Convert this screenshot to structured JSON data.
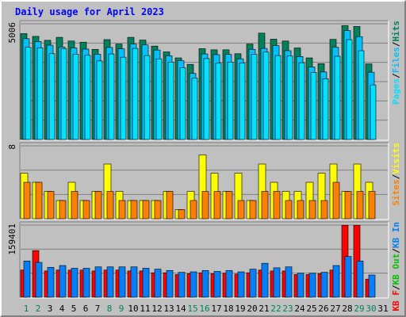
{
  "title": "Daily usage for April 2023",
  "colors": {
    "hits": "#00805c",
    "files": "#00c0ff",
    "pages": "#00e0ff",
    "visits": "#ffff00",
    "sites": "#ff8000",
    "kb_in": "#0080ff",
    "kb_out": "#00c000",
    "kb_f": "#ff0000",
    "panel_bg": "#c0c0c0",
    "grid": "#808080",
    "text_blue": "#0000ff"
  },
  "chart_data": [
    {
      "type": "bar",
      "panel": "requests",
      "ymax_label": "5006",
      "ylim": [
        0,
        5006
      ],
      "legend": [
        "Pages",
        "Files",
        "Hits"
      ],
      "categories": [
        "1",
        "2",
        "3",
        "4",
        "5",
        "6",
        "7",
        "8",
        "9",
        "10",
        "11",
        "12",
        "13",
        "14",
        "15",
        "16",
        "17",
        "18",
        "19",
        "20",
        "21",
        "22",
        "23",
        "24",
        "25",
        "26",
        "27",
        "28",
        "29",
        "30",
        "31"
      ],
      "series": [
        {
          "name": "Hits",
          "values": [
            4580,
            4460,
            4290,
            4420,
            4260,
            4210,
            3900,
            4320,
            4130,
            4420,
            4300,
            4040,
            3790,
            3530,
            3250,
            3930,
            3880,
            3880,
            3710,
            4130,
            4600,
            4340,
            4260,
            3960,
            3530,
            3280,
            4330,
            4930,
            4890,
            3270,
            null
          ]
        },
        {
          "name": "Files",
          "values": [
            4360,
            4240,
            4080,
            4000,
            3960,
            3910,
            3690,
            3980,
            3920,
            4130,
            4090,
            3870,
            3620,
            3410,
            2860,
            3700,
            3670,
            3680,
            3490,
            3900,
            3940,
            4060,
            3840,
            3590,
            3140,
            2920,
            3990,
            4710,
            4450,
            2910,
            null
          ]
        },
        {
          "name": "Pages",
          "values": [
            3990,
            3960,
            3710,
            3930,
            3690,
            3640,
            3400,
            3700,
            3560,
            3940,
            3630,
            3490,
            3350,
            3100,
            2660,
            3500,
            3300,
            3350,
            3310,
            3680,
            3780,
            3630,
            3610,
            3320,
            2900,
            2630,
            3600,
            4320,
            3840,
            2360,
            null
          ]
        }
      ]
    },
    {
      "type": "bar",
      "panel": "visits",
      "ymax_label": "8",
      "ylim": [
        0,
        8
      ],
      "legend": [
        "Sites",
        "Visits"
      ],
      "categories": [
        "1",
        "2",
        "3",
        "4",
        "5",
        "6",
        "7",
        "8",
        "9",
        "10",
        "11",
        "12",
        "13",
        "14",
        "15",
        "16",
        "17",
        "18",
        "19",
        "20",
        "21",
        "22",
        "23",
        "24",
        "25",
        "26",
        "27",
        "28",
        "29",
        "30",
        "31"
      ],
      "series": [
        {
          "name": "Visits",
          "values": [
            5,
            4,
            3,
            2,
            4,
            2,
            3,
            6,
            3,
            2,
            2,
            2,
            3,
            1,
            3,
            7,
            5,
            3,
            5,
            2,
            6,
            4,
            3,
            3,
            4,
            5,
            6,
            3,
            6,
            4,
            null
          ]
        },
        {
          "name": "Sites",
          "values": [
            4,
            4,
            3,
            2,
            3,
            2,
            3,
            3,
            2,
            2,
            2,
            2,
            3,
            1,
            2,
            3,
            3,
            3,
            2,
            2,
            3,
            3,
            2,
            2,
            2,
            2,
            4,
            3,
            3,
            3,
            null
          ]
        }
      ]
    },
    {
      "type": "bar",
      "panel": "kbytes",
      "ymax_label": "159401",
      "ylim": [
        0,
        159401
      ],
      "legend": [
        "KB F",
        "KB Out",
        "KB In"
      ],
      "categories": [
        "1",
        "2",
        "3",
        "4",
        "5",
        "6",
        "7",
        "8",
        "9",
        "10",
        "11",
        "12",
        "13",
        "14",
        "15",
        "16",
        "17",
        "18",
        "19",
        "20",
        "21",
        "22",
        "23",
        "24",
        "25",
        "26",
        "27",
        "28",
        "29",
        "30",
        "31"
      ],
      "series": [
        {
          "name": "KB F",
          "values": [
            60000,
            103000,
            58000,
            60000,
            60000,
            60000,
            58000,
            60000,
            60000,
            58000,
            58000,
            54000,
            54000,
            50000,
            52000,
            54000,
            52000,
            53000,
            51000,
            54000,
            60000,
            58000,
            58000,
            50000,
            50000,
            52000,
            60000,
            159000,
            159000,
            40000,
            null
          ]
        },
        {
          "name": "KB In",
          "values": [
            80000,
            77000,
            66000,
            70000,
            64000,
            64000,
            67000,
            67000,
            67000,
            67000,
            64000,
            62000,
            59000,
            55000,
            56000,
            59000,
            57000,
            59000,
            56000,
            62000,
            75000,
            65000,
            67000,
            53000,
            53000,
            55000,
            70000,
            90000,
            80000,
            49000,
            null
          ]
        },
        {
          "name": "KB Out",
          "values": [
            null,
            null,
            null,
            null,
            null,
            null,
            null,
            null,
            null,
            null,
            null,
            null,
            null,
            null,
            null,
            null,
            null,
            null,
            null,
            null,
            null,
            null,
            null,
            null,
            null,
            null,
            null,
            null,
            null,
            null,
            null
          ]
        }
      ]
    }
  ],
  "x_labels": [
    "1",
    "2",
    "3",
    "4",
    "5",
    "6",
    "7",
    "8",
    "9",
    "10",
    "11",
    "12",
    "13",
    "14",
    "15",
    "16",
    "17",
    "18",
    "19",
    "20",
    "21",
    "22",
    "23",
    "24",
    "25",
    "26",
    "27",
    "28",
    "29",
    "30",
    "31"
  ],
  "weekend_days": [
    "1",
    "2",
    "8",
    "9",
    "15",
    "16",
    "22",
    "23",
    "29",
    "30"
  ],
  "x_label_colors": {
    "weekday": "#000000",
    "weekend": "#00805c"
  }
}
